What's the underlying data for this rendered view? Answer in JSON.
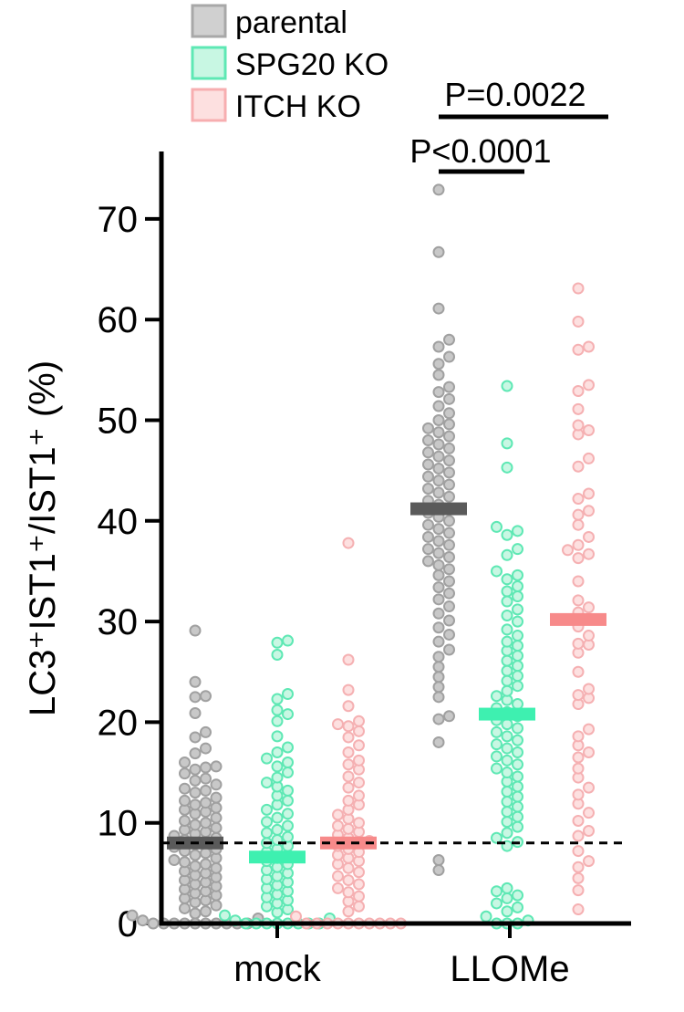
{
  "chart_data": {
    "type": "scatter",
    "subtype": "dot-plot-with-median",
    "title": "",
    "xlabel": "",
    "ylabel": "LC3⁺IST1⁺/IST1⁺ (%)",
    "ylim": [
      0,
      75
    ],
    "yticks": [
      0,
      10,
      20,
      30,
      40,
      50,
      60,
      70
    ],
    "categories": [
      "mock",
      "LLOMe"
    ],
    "reference_line": {
      "value": 8,
      "style": "dashed"
    },
    "legend": {
      "placement": "top-left",
      "entries": [
        {
          "name": "parental",
          "fill": "#d0d0d0",
          "stroke": "#a8a8a8"
        },
        {
          "name": "SPG20 KO",
          "fill": "#c8f7e3",
          "stroke": "#5ee8b4"
        },
        {
          "name": "ITCH KO",
          "fill": "#fde0e0",
          "stroke": "#f7aeb0"
        }
      ]
    },
    "series": [
      {
        "name": "parental",
        "fill": "#c8c8c8",
        "stroke": "#a0a0a0",
        "median_color": "#5a5a5a",
        "groups": [
          {
            "category": "mock",
            "median": 8,
            "values": [
              29.1,
              24,
              22.6,
              22.5,
              20.9,
              19,
              18.5,
              17.4,
              16.9,
              16,
              15.6,
              15.5,
              15.3,
              14.9,
              14.4,
              14.2,
              13.8,
              13.4,
              13.2,
              13,
              12.5,
              12.2,
              12,
              11.8,
              11.5,
              11.3,
              11.1,
              10.9,
              10.5,
              10.2,
              10,
              9.8,
              9.5,
              9.3,
              9.1,
              8.9,
              8.7,
              8.5,
              8.3,
              8.1,
              7.9,
              7.6,
              7.4,
              7.2,
              7,
              6.8,
              6.5,
              6.3,
              6.1,
              5.9,
              5.7,
              5.5,
              5.2,
              5,
              4.8,
              4.6,
              4.3,
              4.1,
              3.9,
              3.7,
              3.4,
              3.2,
              3,
              2.8,
              2.5,
              2.3,
              2.1,
              1.8,
              1.5,
              1.2,
              1,
              0.8,
              0.5,
              0.3,
              0,
              0,
              0,
              0,
              0,
              0,
              0,
              0,
              0,
              0
            ]
          },
          {
            "category": "LLOMe",
            "median": 41.2,
            "values": [
              72.9,
              66.7,
              61.1,
              58,
              57.3,
              56.3,
              55.6,
              54.5,
              53.3,
              52.8,
              52.1,
              51.4,
              50.7,
              50,
              49.6,
              49.2,
              48.8,
              48.4,
              48,
              47.6,
              47.2,
              46.8,
              46.4,
              46,
              45.6,
              45.2,
              44.8,
              44.4,
              44,
              43.6,
              43.2,
              42.8,
              42.4,
              42,
              41.6,
              41.2,
              40.8,
              40.4,
              40,
              39.6,
              39.2,
              38.8,
              38.4,
              38,
              37.6,
              37.2,
              36.8,
              36.4,
              36,
              35.6,
              35.2,
              34.6,
              34,
              33.4,
              32.8,
              32.2,
              31.5,
              30.8,
              30.1,
              29.4,
              28.7,
              28,
              27.2,
              26.5,
              25.5,
              24.5,
              23.5,
              22.5,
              20.6,
              20.3,
              18,
              6.3,
              5.3
            ]
          }
        ]
      },
      {
        "name": "SPG20 KO",
        "fill": "#c8f7e3",
        "stroke": "#5ee8b4",
        "median_color": "#3ef0b0",
        "groups": [
          {
            "category": "mock",
            "median": 6.6,
            "values": [
              28.1,
              27.9,
              26.7,
              22.8,
              22.3,
              21.2,
              20.8,
              20.1,
              18.6,
              17.5,
              17,
              16.4,
              16,
              15.6,
              15,
              14.5,
              14,
              13.6,
              13.2,
              12.7,
              12.2,
              11.8,
              11.3,
              10.9,
              10.5,
              10.1,
              9.7,
              9.3,
              9,
              8.6,
              8.3,
              8,
              7.7,
              7.4,
              7.1,
              6.8,
              6.5,
              6.2,
              5.9,
              5.6,
              5.3,
              5,
              4.7,
              4.4,
              4.1,
              3.8,
              3.5,
              3.2,
              2.9,
              2.6,
              2.3,
              2,
              1.7,
              1.4,
              1.1,
              0.8,
              0.5,
              0.3,
              0,
              0,
              0,
              0,
              0,
              0,
              0,
              0
            ]
          },
          {
            "category": "LLOMe",
            "median": 20.8,
            "values": [
              53.4,
              47.7,
              45.3,
              39.4,
              39,
              38.6,
              37.2,
              36.6,
              35,
              34.6,
              34.2,
              33.5,
              33,
              32.5,
              32,
              31.2,
              30.6,
              30,
              29.2,
              28.6,
              28,
              27.6,
              27.1,
              26.6,
              26.1,
              25.6,
              25.1,
              24.6,
              24.1,
              23.6,
              23.1,
              22.6,
              22.2,
              21.8,
              21.4,
              21,
              20.6,
              20.2,
              19.8,
              19.4,
              19,
              18.6,
              18.2,
              17.8,
              17.4,
              17,
              16.6,
              16.2,
              15.8,
              15.4,
              15,
              14.6,
              14.1,
              13.6,
              13.1,
              12.6,
              12.1,
              11.6,
              11.1,
              10.6,
              10.1,
              9.6,
              9,
              8.5,
              8.1,
              7.7,
              3.5,
              3.2,
              2.8,
              2.5,
              2,
              1.6,
              1.2,
              0.7,
              0.3,
              0,
              0,
              0
            ]
          }
        ]
      },
      {
        "name": "ITCH KO",
        "fill": "#fde0e0",
        "stroke": "#f5b0b2",
        "median_color": "#f78a8a",
        "groups": [
          {
            "category": "mock",
            "median": 8,
            "values": [
              37.8,
              26.2,
              23.2,
              21.6,
              20.1,
              19.8,
              19.6,
              19.1,
              18.5,
              17.7,
              17,
              16.2,
              15.8,
              15.3,
              14.6,
              14,
              13.5,
              12.7,
              12.2,
              11.8,
              11.3,
              10.8,
              10.4,
              10,
              9.7,
              9.4,
              9.1,
              8.8,
              8.5,
              8.2,
              8,
              7.7,
              7.4,
              7.1,
              6.8,
              6.5,
              6.2,
              5.9,
              5.5,
              5.1,
              4.7,
              4.3,
              3.9,
              3.5,
              3.1,
              2.7,
              2.2,
              1.7,
              1.2,
              0.7,
              0,
              0,
              0,
              0,
              0,
              0,
              0,
              0,
              0,
              0
            ]
          },
          {
            "category": "LLOMe",
            "median": 30.2,
            "values": [
              63.1,
              59.8,
              57.3,
              57,
              53.5,
              52.9,
              51.1,
              49.5,
              49,
              48.6,
              46.2,
              45.4,
              42.7,
              42.2,
              41,
              40.6,
              39.6,
              38.4,
              37.6,
              37.1,
              36.7,
              36.3,
              34,
              32.1,
              31.4,
              30.9,
              29.5,
              28.6,
              27.8,
              27.7,
              26.9,
              25,
              23.3,
              22.7,
              22.4,
              21.8,
              19.3,
              18.6,
              17.7,
              17,
              16.5,
              15.4,
              14.5,
              13.5,
              12.8,
              11.9,
              11,
              10.2,
              9.2,
              8.7,
              7.2,
              6.2,
              5.6,
              4.5,
              3.3,
              1.4
            ]
          }
        ]
      }
    ],
    "annotations": [
      {
        "text": "P=0.0022",
        "from": [
          "LLOMe",
          "parental"
        ],
        "to": [
          "LLOMe",
          "ITCH KO"
        ]
      },
      {
        "text": "P<0.0001",
        "from": [
          "LLOMe",
          "parental"
        ],
        "to": [
          "LLOMe",
          "SPG20 KO"
        ]
      }
    ]
  }
}
